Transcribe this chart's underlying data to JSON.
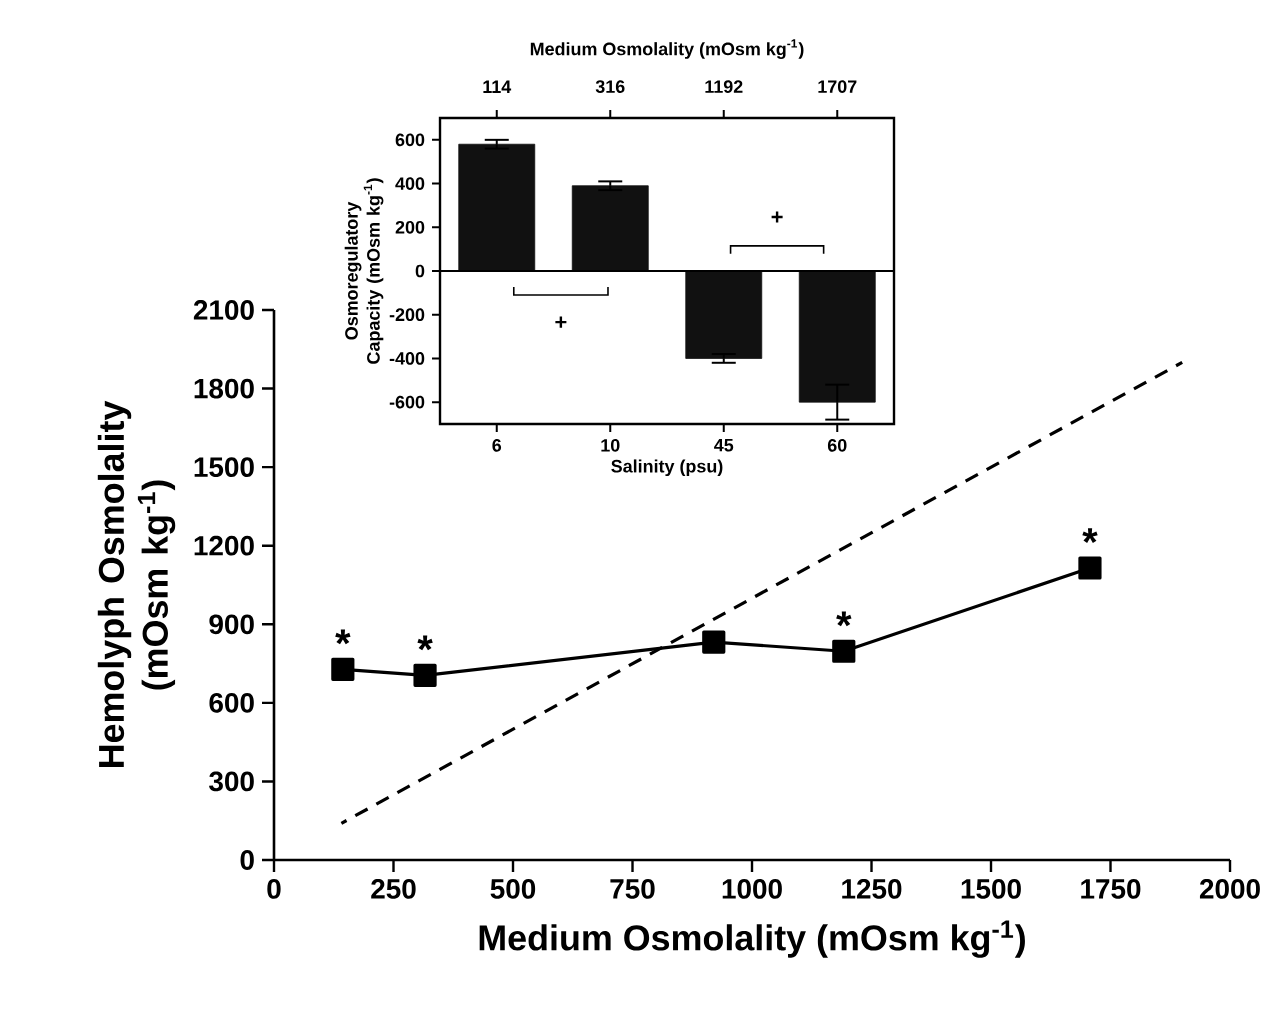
{
  "chart_data": [
    {
      "type": "line",
      "xlabel": "Medium Osmolality (mOsm kg$^{-1}$)",
      "ylabel": "Hemolyph Osmolality (mOsm kg$^{-1}$)",
      "xlim": [
        0,
        2000
      ],
      "ylim": [
        0,
        2100
      ],
      "xticks": [
        0,
        250,
        500,
        750,
        1000,
        1250,
        1500,
        1750,
        2000
      ],
      "yticks": [
        0,
        300,
        600,
        900,
        1200,
        1500,
        1800,
        2100
      ],
      "series": [
        {
          "color": "#000000",
          "x": [
            144,
            316,
            920,
            1192,
            1707
          ],
          "values": [
            728,
            705,
            832,
            797,
            1115
          ],
          "marker": "square",
          "line_style": "solid"
        },
        {
          "color": "#000000",
          "x": [
            141,
            1900
          ],
          "values": [
            140,
            1900
          ],
          "marker": "none",
          "line_style": "dashed"
        }
      ],
      "annotations": [
        {
          "text": "*",
          "x": 144,
          "y": 728
        },
        {
          "text": "*",
          "x": 316,
          "y": 705
        },
        {
          "text": "*",
          "x": 1192,
          "y": 797
        },
        {
          "text": "*",
          "x": 1707,
          "y": 1115
        }
      ]
    },
    {
      "type": "bar",
      "xlabel": "Salinity (psu)",
      "ylabel": "Osmoregulatory Capacity (mOsm kg$^{-1}$)",
      "x2label": "Medium Osmolality (mOsm kg$^{-1}$)",
      "categories": [
        "6",
        "10",
        "45",
        "60"
      ],
      "values": [
        580,
        390,
        -400,
        -600
      ],
      "errors": [
        20,
        20,
        20,
        80
      ],
      "color": "#111111",
      "ylim": [
        -700,
        700
      ],
      "yticks": [
        -600,
        -400,
        -200,
        0,
        200,
        400,
        600
      ],
      "annotations": [
        "114",
        "316",
        "1192",
        "1707",
        "+",
        "+"
      ]
    }
  ]
}
